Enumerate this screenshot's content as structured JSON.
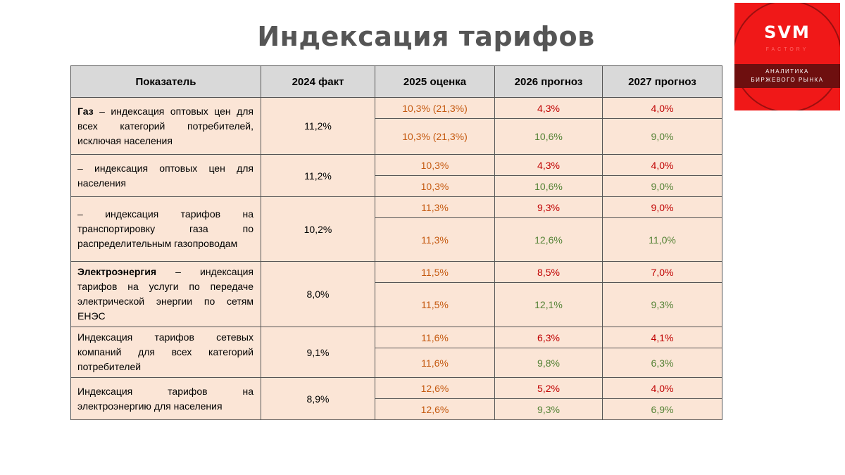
{
  "title": "Индексация тарифов",
  "logo": {
    "main": "SVM",
    "sub": "FACTORY",
    "band_line1": "АНАЛИТИКА",
    "band_line2": "БИРЖЕВОГО РЫНКА"
  },
  "colors": {
    "header_bg": "#d9d9d9",
    "row_bg": "#fbe5d6",
    "estimate": "#c55a11",
    "forecast_high": "#c00000",
    "forecast_alt": "#548235",
    "logo_bg": "#f01818"
  },
  "table": {
    "headers": [
      "Показатель",
      "2024 факт",
      "2025 оценка",
      "2026 прогноз",
      "2027 прогноз"
    ],
    "groups": [
      {
        "label_bold": "Газ",
        "label_text": " – индексация оптовых цен для всех категорий потребителей, исключая населения",
        "fact": "11,2%",
        "rows": [
          {
            "y2025": "10,3% (21,3%)",
            "y2026": "4,3%",
            "y2027": "4,0%"
          },
          {
            "y2025": "10,3% (21,3%)",
            "y2026": "10,6%",
            "y2027": "9,0%"
          }
        ]
      },
      {
        "label_bold": "",
        "label_text": "– индексация оптовых цен для населения",
        "fact": "11,2%",
        "rows": [
          {
            "y2025": "10,3%",
            "y2026": "4,3%",
            "y2027": "4,0%"
          },
          {
            "y2025": "10,3%",
            "y2026": "10,6%",
            "y2027": "9,0%"
          }
        ]
      },
      {
        "label_bold": "",
        "label_text": "– индексация тарифов на транспортировку газа по распределительным газопроводам",
        "fact": "10,2%",
        "rows": [
          {
            "y2025": "11,3%",
            "y2026": "9,3%",
            "y2027": "9,0%"
          },
          {
            "y2025": "11,3%",
            "y2026": "12,6%",
            "y2027": "11,0%"
          }
        ]
      },
      {
        "label_bold": "Электроэнергия",
        "label_text": " – индексация тарифов на услуги по передаче электрической энергии по сетям ЕНЭС",
        "fact": "8,0%",
        "rows": [
          {
            "y2025": "11,5%",
            "y2026": "8,5%",
            "y2027": "7,0%"
          },
          {
            "y2025": "11,5%",
            "y2026": "12,1%",
            "y2027": "9,3%"
          }
        ]
      },
      {
        "label_bold": "",
        "label_text": "Индексация тарифов сетевых компаний для всех категорий потребителей",
        "fact": "9,1%",
        "rows": [
          {
            "y2025": "11,6%",
            "y2026": "6,3%",
            "y2027": "4,1%"
          },
          {
            "y2025": "11,6%",
            "y2026": "9,8%",
            "y2027": "6,3%"
          }
        ]
      },
      {
        "label_bold": "",
        "label_text": "Индексация тарифов на электроэнергию для населения",
        "fact": "8,9%",
        "rows": [
          {
            "y2025": "12,6%",
            "y2026": "5,2%",
            "y2027": "4,0%"
          },
          {
            "y2025": "12,6%",
            "y2026": "9,3%",
            "y2027": "6,9%"
          }
        ]
      }
    ]
  }
}
